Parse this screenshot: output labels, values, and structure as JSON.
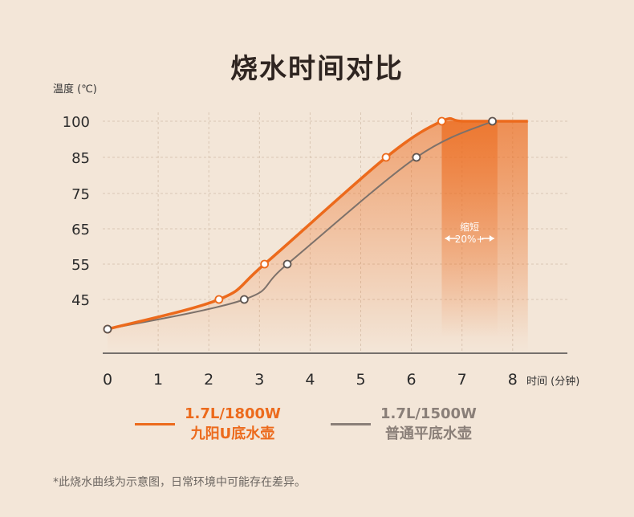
{
  "title": "烧水时间对比",
  "colors": {
    "accent": "#ec6a1c",
    "secondary": "#7d716a",
    "background": "#f3e6d8",
    "highlight": "#ef8f4c"
  },
  "annotation": {
    "line1": "缩短",
    "line2": "20%+"
  },
  "footnote": "*此烧水曲线为示意图，日常环境中可能存在差异。",
  "chart_data": {
    "type": "line",
    "title": "烧水时间对比",
    "ylabel": "温度 (℃)",
    "xlabel": "时间 (分钟)",
    "x_ticks": [
      0,
      1,
      2,
      3,
      4,
      5,
      6,
      7,
      8
    ],
    "y_ticks": [
      45,
      55,
      65,
      75,
      85,
      100
    ],
    "xlim": [
      0,
      8
    ],
    "legend_position": "bottom",
    "grid": true,
    "highlight_range": [
      6.6,
      7.7
    ],
    "series": [
      {
        "name": "1.7L/1800W 九阳U底水壶",
        "color": "#ec6a1c",
        "points": [
          [
            0,
            36
          ],
          [
            2.2,
            45
          ],
          [
            3.1,
            55
          ],
          [
            5.5,
            85
          ],
          [
            6.6,
            100
          ]
        ],
        "end_x": 8.3
      },
      {
        "name": "1.7L/1500W 普通平底水壶",
        "color": "#7d716a",
        "points": [
          [
            0,
            36
          ],
          [
            2.7,
            45
          ],
          [
            3.55,
            55
          ],
          [
            6.1,
            85
          ],
          [
            7.6,
            100
          ]
        ],
        "end_x": 7.6
      }
    ]
  },
  "legend": [
    {
      "line1": "1.7L/1800W",
      "line2": "九阳U底水壶"
    },
    {
      "line1": "1.7L/1500W",
      "line2": "普通平底水壶"
    }
  ]
}
